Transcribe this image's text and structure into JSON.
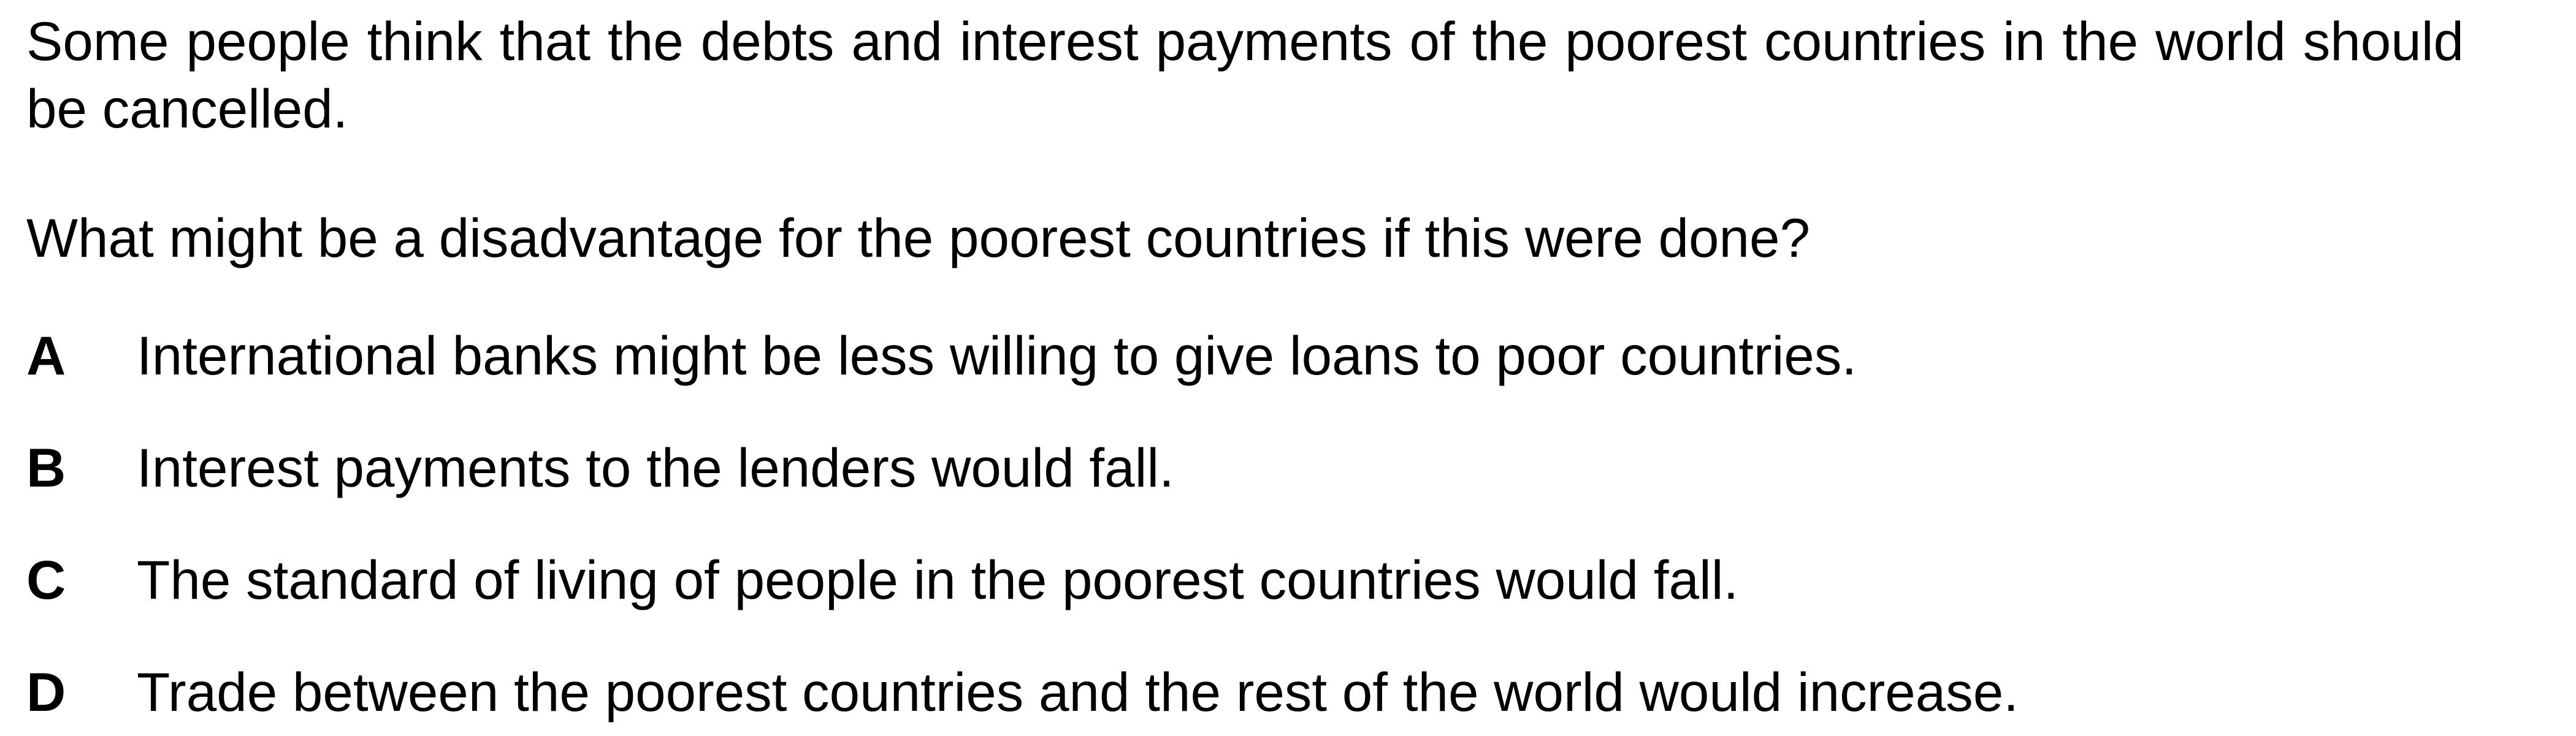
{
  "stem": "Some people think that the debts and interest payments of the poorest countries in the world should be cancelled.",
  "question": "What might be a disadvantage for the poorest countries if this were done?",
  "options": [
    {
      "letter": "A",
      "text": "International banks might be less willing to give loans to poor countries."
    },
    {
      "letter": "B",
      "text": "Interest payments to the lenders would fall."
    },
    {
      "letter": "C",
      "text": "The standard of living of people in the poorest countries would fall."
    },
    {
      "letter": "D",
      "text": "Trade between the poorest countries and the rest of the world would increase."
    }
  ]
}
